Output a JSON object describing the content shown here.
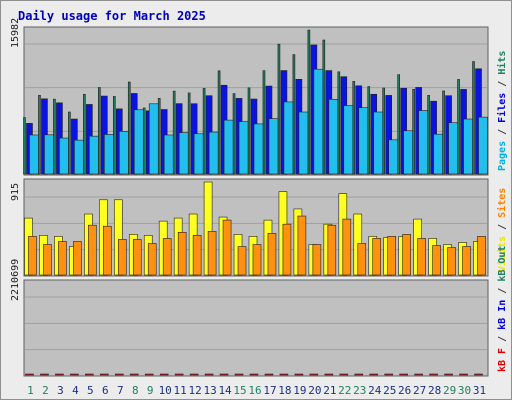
{
  "chart_data": [
    {
      "type": "bar",
      "panel": "top",
      "title": "Daily usage for March 2025",
      "ymax_label": "15982",
      "ylim": [
        0,
        15982
      ],
      "y_axis_label_parts": [
        {
          "text": "Pages",
          "color": "#00b0e8"
        },
        {
          "text": " / ",
          "color": "#404040"
        },
        {
          "text": "Files",
          "color": "#0000e0"
        },
        {
          "text": " / ",
          "color": "#404040"
        },
        {
          "text": "Hits",
          "color": "#1f8060"
        }
      ],
      "categories": [
        "1",
        "2",
        "3",
        "4",
        "5",
        "6",
        "7",
        "8",
        "9",
        "10",
        "11",
        "12",
        "13",
        "14",
        "15",
        "16",
        "17",
        "18",
        "19",
        "20",
        "21",
        "22",
        "23",
        "24",
        "25",
        "26",
        "27",
        "28",
        "29",
        "30",
        "31"
      ],
      "series": [
        {
          "name": "Hits",
          "color": "#1f7f5f",
          "values": [
            6260,
            8730,
            8310,
            6880,
            8850,
            9600,
            8610,
            10210,
            7330,
            8400,
            9200,
            9000,
            9500,
            11450,
            8920,
            9560,
            11470,
            14410,
            13250,
            15980,
            14870,
            11340,
            10280,
            9710,
            9540,
            11030,
            9400,
            8730,
            9220,
            10500,
            12480
          ]
        },
        {
          "name": "Files",
          "color": "#0a14e0",
          "values": [
            5620,
            8340,
            7900,
            6100,
            7720,
            8650,
            7230,
            8940,
            7010,
            7160,
            7810,
            7800,
            8690,
            9850,
            8390,
            8320,
            9760,
            11480,
            10510,
            14320,
            11480,
            10800,
            9790,
            8850,
            8720,
            9520,
            9610,
            8080,
            8690,
            9390,
            11680
          ]
        },
        {
          "name": "Pages",
          "color": "#22bfee",
          "values": [
            4330,
            4350,
            3990,
            3760,
            4200,
            4390,
            4740,
            7130,
            7790,
            4330,
            4590,
            4470,
            4650,
            5980,
            5820,
            5560,
            6140,
            8000,
            6880,
            11630,
            8290,
            7600,
            7360,
            6880,
            3790,
            4800,
            7040,
            4420,
            5690,
            6100,
            6310
          ]
        }
      ]
    },
    {
      "type": "bar",
      "panel": "middle",
      "ymax_label": "915",
      "ylim": [
        0,
        915
      ],
      "y_axis_label_parts": [
        {
          "text": "Visits",
          "color": "#e8e800"
        },
        {
          "text": " / ",
          "color": "#404040"
        },
        {
          "text": "Sites",
          "color": "#ff8000"
        }
      ],
      "categories": [
        "1",
        "2",
        "3",
        "4",
        "5",
        "6",
        "7",
        "8",
        "9",
        "10",
        "11",
        "12",
        "13",
        "14",
        "15",
        "16",
        "17",
        "18",
        "19",
        "20",
        "21",
        "22",
        "23",
        "24",
        "25",
        "26",
        "27",
        "28",
        "29",
        "30",
        "31"
      ],
      "series": [
        {
          "name": "Visits",
          "color": "#ffff20",
          "values": [
            560,
            390,
            380,
            280,
            600,
            740,
            740,
            400,
            390,
            530,
            560,
            600,
            915,
            570,
            400,
            380,
            540,
            820,
            650,
            300,
            500,
            800,
            600,
            380,
            370,
            380,
            550,
            360,
            300,
            320,
            330
          ]
        },
        {
          "name": "Sites",
          "color": "#ff9010",
          "values": [
            380,
            300,
            330,
            330,
            490,
            480,
            350,
            350,
            310,
            360,
            420,
            390,
            430,
            540,
            280,
            300,
            410,
            500,
            580,
            300,
            490,
            550,
            310,
            360,
            380,
            400,
            360,
            290,
            270,
            280,
            380
          ]
        }
      ]
    },
    {
      "type": "bar",
      "panel": "bottom",
      "ymax_label": "2210699",
      "ylim": [
        0,
        2210699
      ],
      "y_axis_label_parts": [
        {
          "text": "kB F",
          "color": "#e00000"
        },
        {
          "text": " / ",
          "color": "#404040"
        },
        {
          "text": "kB In",
          "color": "#0000e0"
        },
        {
          "text": " / ",
          "color": "#404040"
        },
        {
          "text": "kB Out",
          "color": "#1f8060"
        }
      ],
      "categories": [
        "1",
        "2",
        "3",
        "4",
        "5",
        "6",
        "7",
        "8",
        "9",
        "10",
        "11",
        "12",
        "13",
        "14",
        "15",
        "16",
        "17",
        "18",
        "19",
        "20",
        "21",
        "22",
        "23",
        "24",
        "25",
        "26",
        "27",
        "28",
        "29",
        "30",
        "31"
      ],
      "series": [
        {
          "name": "kB F",
          "color": "#ff1a1a",
          "values": [
            570,
            460,
            440,
            460,
            470,
            780,
            740,
            590,
            530,
            500,
            510,
            550,
            600,
            750,
            750,
            680,
            690,
            800,
            2210,
            1160,
            1000,
            860,
            740,
            620,
            400,
            400,
            640,
            660,
            550,
            710,
            740
          ]
        }
      ]
    }
  ],
  "x_label_colors": {
    "weekday": "#1a3080",
    "weekend": "#1f8060"
  },
  "weekend_days": [
    "1",
    "2",
    "8",
    "9",
    "15",
    "16",
    "22",
    "23",
    "29",
    "30"
  ],
  "colors": {
    "background": "#ececec",
    "plot_bg": "#c0c0c0",
    "frame": "#606060",
    "title": "#0000c0",
    "grid": "#a0a0a0"
  }
}
